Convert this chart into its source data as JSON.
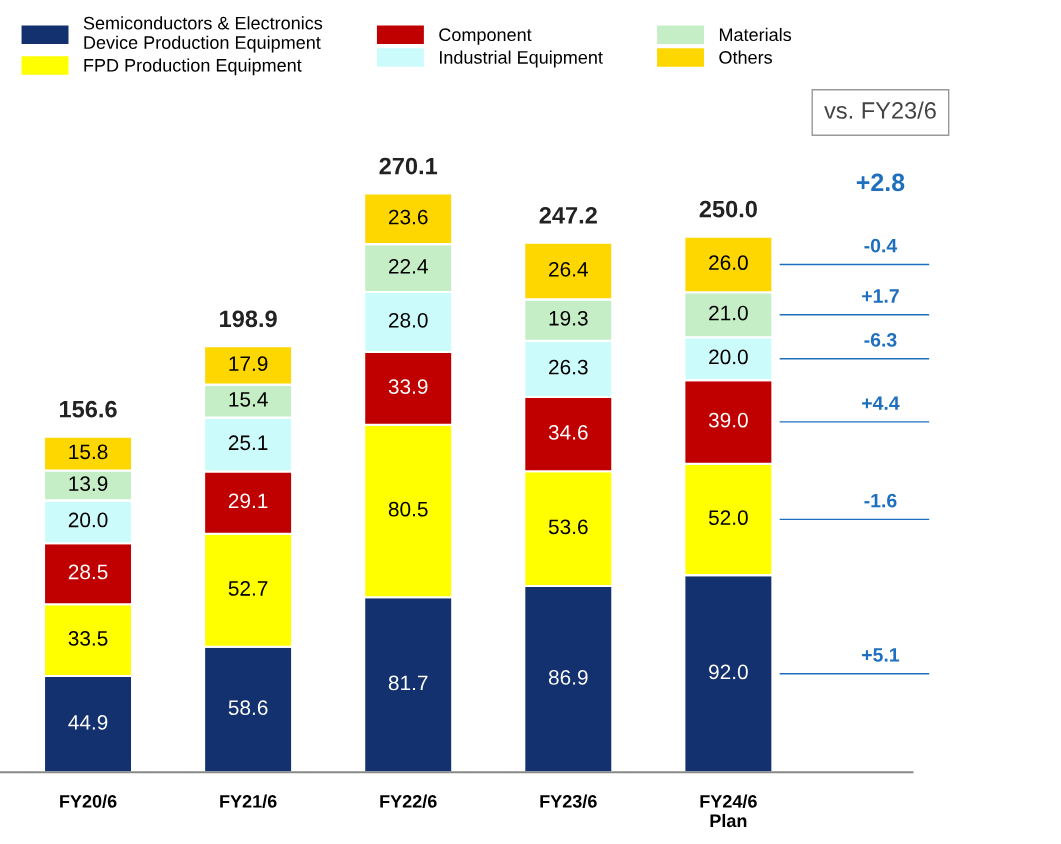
{
  "chart_data": {
    "type": "bar",
    "stacked": true,
    "legend": "top",
    "grid": false,
    "categories": [
      "FY20/6",
      "FY21/6",
      "FY22/6",
      "FY23/6",
      "FY24/6\nPlan"
    ],
    "series": [
      {
        "name": "Semiconductors & Electronics\nDevice Production Equipment",
        "color": "#14316f",
        "values": [
          44.9,
          58.6,
          81.7,
          86.9,
          92.0
        ],
        "value_labels": [
          "44.9",
          "58.6",
          "81.7",
          "86.9",
          "92.0"
        ]
      },
      {
        "name": "FPD Production Equipment",
        "color": "#ffff00",
        "values": [
          33.5,
          52.7,
          80.5,
          53.6,
          52.0
        ],
        "value_labels": [
          "33.5",
          "52.7",
          "80.5",
          "53.6",
          "52.0"
        ]
      },
      {
        "name": "Component",
        "color": "#c00000",
        "values": [
          28.5,
          29.1,
          33.9,
          34.6,
          39.0
        ],
        "value_labels": [
          "28.5",
          "29.1",
          "33.9",
          "34.6",
          "39.0"
        ]
      },
      {
        "name": "Industrial Equipment",
        "color": "#ccfbfb",
        "values": [
          20.0,
          25.1,
          28.0,
          26.3,
          20.0
        ],
        "value_labels": [
          "20.0",
          "25.1",
          "28.0",
          "26.3",
          "20.0"
        ]
      },
      {
        "name": "Materials",
        "color": "#c6eec6",
        "values": [
          13.9,
          15.4,
          22.4,
          19.3,
          21.0
        ],
        "value_labels": [
          "13.9",
          "15.4",
          "22.4",
          "19.3",
          "21.0"
        ]
      },
      {
        "name": "Others",
        "color": "#ffd700",
        "values": [
          15.8,
          17.9,
          23.6,
          26.4,
          26.0
        ],
        "value_labels": [
          "15.8",
          "17.9",
          "23.6",
          "26.4",
          "26.0"
        ]
      }
    ],
    "totals": [
      "156.6",
      "198.9",
      "270.1",
      "247.2",
      "250.0"
    ],
    "annotations": [
      "vs. FY23/6",
      "+2.8",
      "+5.1",
      "-1.6",
      "+4.4",
      "-6.3",
      "+1.7",
      "-0.4"
    ]
  }
}
